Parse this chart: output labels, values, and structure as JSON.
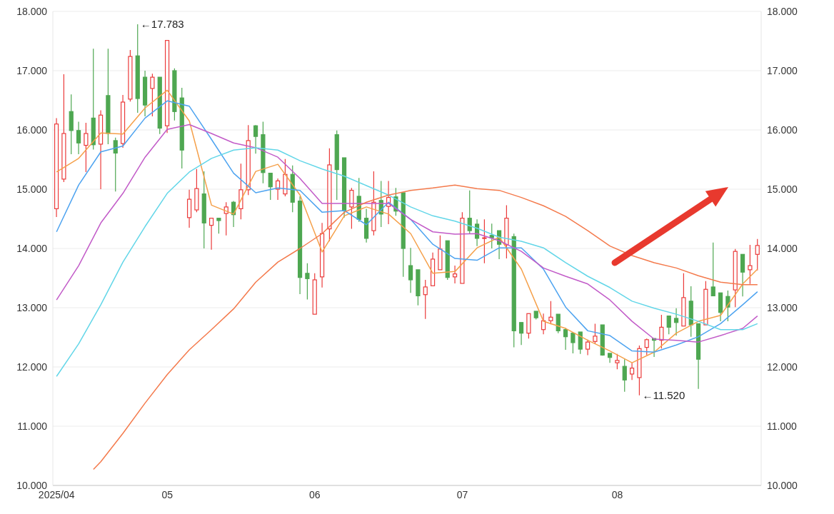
{
  "chart_data": {
    "type": "candlestick",
    "categories": [
      "2025/04",
      null,
      null,
      null,
      null,
      null,
      null,
      null,
      null,
      null,
      null,
      null,
      null,
      null,
      null,
      "05",
      null,
      null,
      null,
      null,
      null,
      null,
      null,
      null,
      null,
      null,
      null,
      null,
      null,
      null,
      null,
      null,
      null,
      null,
      null,
      "06",
      null,
      null,
      null,
      null,
      null,
      null,
      null,
      null,
      null,
      null,
      null,
      null,
      null,
      null,
      null,
      null,
      null,
      null,
      null,
      "07",
      null,
      null,
      null,
      null,
      null,
      null,
      null,
      null,
      null,
      null,
      null,
      null,
      null,
      null,
      null,
      null,
      null,
      null,
      null,
      null,
      "08",
      null,
      null,
      null,
      null,
      null,
      null,
      null,
      null,
      null,
      null,
      null,
      null,
      null,
      null,
      null,
      null,
      null,
      null,
      null
    ],
    "ohlc": [
      [
        14.67,
        16.2,
        14.53,
        16.1
      ],
      [
        15.17,
        16.94,
        15.12,
        15.94
      ],
      [
        16.31,
        16.6,
        15.59,
        15.99
      ],
      [
        15.99,
        16.14,
        15.59,
        15.78
      ],
      [
        15.74,
        16.12,
        15.29,
        15.94
      ],
      [
        16.2,
        17.37,
        15.67,
        15.75
      ],
      [
        15.76,
        16.33,
        15.0,
        16.25
      ],
      [
        16.58,
        17.37,
        15.76,
        15.94
      ],
      [
        15.82,
        15.87,
        14.96,
        15.61
      ],
      [
        15.77,
        16.59,
        15.7,
        16.47
      ],
      [
        16.52,
        17.35,
        16.48,
        17.24
      ],
      [
        17.25,
        17.783,
        16.29,
        16.53
      ],
      [
        16.89,
        17.0,
        16.23,
        16.42
      ],
      [
        16.7,
        16.95,
        16.23,
        16.89
      ],
      [
        16.89,
        16.89,
        15.93,
        16.03
      ],
      [
        16.07,
        17.51,
        15.95,
        17.51
      ],
      [
        17.0,
        17.04,
        16.16,
        16.31
      ],
      [
        16.54,
        16.71,
        15.35,
        15.66
      ],
      [
        14.52,
        14.99,
        14.35,
        14.83
      ],
      [
        14.65,
        15.34,
        14.61,
        15.01
      ],
      [
        14.92,
        15.3,
        14.0,
        14.43
      ],
      [
        14.39,
        14.51,
        13.98,
        14.51
      ],
      [
        14.51,
        14.51,
        14.25,
        14.47
      ],
      [
        14.59,
        14.78,
        14.22,
        14.7
      ],
      [
        14.78,
        14.8,
        14.36,
        14.57
      ],
      [
        14.67,
        15.43,
        14.49,
        14.99
      ],
      [
        14.99,
        16.08,
        14.9,
        15.82
      ],
      [
        16.07,
        16.08,
        15.6,
        15.89
      ],
      [
        15.92,
        16.14,
        15.1,
        15.28
      ],
      [
        15.27,
        15.27,
        14.82,
        15.04
      ],
      [
        15.0,
        15.18,
        14.82,
        15.14
      ],
      [
        14.92,
        15.51,
        14.88,
        15.25
      ],
      [
        15.25,
        15.4,
        14.61,
        14.78
      ],
      [
        14.8,
        14.88,
        13.23,
        13.51
      ],
      [
        13.58,
        13.75,
        13.14,
        13.49
      ],
      [
        12.89,
        13.58,
        12.89,
        13.47
      ],
      [
        13.52,
        14.43,
        13.34,
        14.25
      ],
      [
        14.33,
        15.69,
        14.12,
        15.41
      ],
      [
        15.92,
        15.99,
        14.82,
        15.33
      ],
      [
        15.53,
        15.53,
        14.52,
        14.64
      ],
      [
        14.7,
        15.02,
        14.33,
        14.98
      ],
      [
        14.88,
        15.19,
        14.45,
        14.49
      ],
      [
        14.51,
        14.67,
        14.1,
        14.17
      ],
      [
        14.3,
        15.3,
        14.22,
        14.78
      ],
      [
        14.81,
        15.14,
        14.36,
        14.58
      ],
      [
        14.71,
        15.14,
        14.41,
        14.86
      ],
      [
        14.87,
        15.02,
        14.55,
        14.63
      ],
      [
        14.94,
        14.94,
        13.52,
        14.0
      ],
      [
        13.71,
        14.01,
        13.25,
        13.47
      ],
      [
        13.64,
        13.64,
        13.04,
        13.2
      ],
      [
        13.22,
        13.47,
        12.81,
        13.35
      ],
      [
        13.37,
        13.93,
        13.37,
        13.82
      ],
      [
        13.64,
        14.22,
        13.64,
        13.99
      ],
      [
        14.13,
        14.13,
        13.47,
        13.51
      ],
      [
        13.52,
        13.71,
        13.41,
        13.57
      ],
      [
        13.41,
        14.61,
        13.41,
        14.51
      ],
      [
        14.51,
        14.98,
        14.25,
        14.3
      ],
      [
        14.41,
        14.49,
        14.04,
        14.17
      ],
      [
        14.17,
        14.49,
        13.75,
        14.18
      ],
      [
        14.22,
        14.42,
        14.0,
        14.18
      ],
      [
        14.3,
        14.3,
        13.82,
        14.07
      ],
      [
        14.06,
        14.73,
        13.83,
        14.51
      ],
      [
        14.2,
        14.25,
        12.33,
        12.61
      ],
      [
        12.75,
        12.75,
        12.37,
        12.57
      ],
      [
        12.57,
        12.9,
        12.48,
        12.9
      ],
      [
        12.94,
        12.94,
        12.8,
        12.83
      ],
      [
        12.63,
        12.9,
        12.55,
        12.78
      ],
      [
        12.78,
        13.11,
        12.72,
        12.84
      ],
      [
        12.89,
        12.89,
        12.57,
        12.61
      ],
      [
        12.63,
        12.66,
        12.29,
        12.51
      ],
      [
        12.57,
        12.57,
        12.23,
        12.41
      ],
      [
        12.59,
        12.59,
        12.22,
        12.3
      ],
      [
        12.3,
        12.46,
        12.2,
        12.42
      ],
      [
        12.43,
        12.73,
        12.39,
        12.52
      ],
      [
        12.71,
        12.71,
        12.19,
        12.2
      ],
      [
        12.23,
        12.23,
        12.07,
        12.16
      ],
      [
        12.07,
        12.22,
        11.96,
        12.11
      ],
      [
        12.01,
        12.13,
        11.58,
        11.78
      ],
      [
        11.88,
        12.07,
        11.78,
        11.98
      ],
      [
        11.82,
        12.36,
        11.52,
        12.31
      ],
      [
        12.33,
        12.48,
        12.2,
        12.46
      ],
      [
        12.48,
        12.48,
        12.17,
        12.45
      ],
      [
        12.45,
        12.88,
        12.31,
        12.67
      ],
      [
        12.86,
        12.86,
        12.55,
        12.67
      ],
      [
        12.82,
        12.99,
        12.53,
        12.75
      ],
      [
        12.69,
        13.58,
        12.69,
        13.17
      ],
      [
        13.11,
        13.36,
        12.51,
        12.71
      ],
      [
        12.73,
        12.73,
        11.63,
        12.13
      ],
      [
        12.71,
        13.45,
        12.71,
        13.31
      ],
      [
        13.35,
        14.1,
        13.2,
        13.2
      ],
      [
        13.25,
        13.25,
        12.77,
        12.92
      ],
      [
        13.19,
        13.29,
        12.77,
        13.01
      ],
      [
        13.3,
        13.99,
        13.01,
        13.95
      ],
      [
        13.9,
        13.9,
        13.19,
        13.6
      ],
      [
        13.64,
        14.06,
        13.4,
        13.71
      ],
      [
        13.9,
        14.16,
        13.63,
        14.05
      ]
    ],
    "colors": [
      "#eb3b3b",
      "#eb3b3b",
      "#4ea751",
      "#4ea751",
      "#eb3b3b",
      "#4ea751",
      "#eb3b3b",
      "#4ea751",
      "#4ea751",
      "#eb3b3b",
      "#eb3b3b",
      "#4ea751",
      "#4ea751",
      "#eb3b3b",
      "#4ea751",
      "#eb3b3b",
      "#4ea751",
      "#4ea751",
      "#eb3b3b",
      "#eb3b3b",
      "#4ea751",
      "#eb3b3b",
      "#4ea751",
      "#eb3b3b",
      "#4ea751",
      "#eb3b3b",
      "#eb3b3b",
      "#4ea751",
      "#4ea751",
      "#4ea751",
      "#eb3b3b",
      "#eb3b3b",
      "#4ea751",
      "#4ea751",
      "#4ea751",
      "#eb3b3b",
      "#eb3b3b",
      "#eb3b3b",
      "#4ea751",
      "#4ea751",
      "#eb3b3b",
      "#4ea751",
      "#4ea751",
      "#eb3b3b",
      "#4ea751",
      "#eb3b3b",
      "#4ea751",
      "#4ea751",
      "#4ea751",
      "#4ea751",
      "#eb3b3b",
      "#eb3b3b",
      "#eb3b3b",
      "#4ea751",
      "#eb3b3b",
      "#eb3b3b",
      "#4ea751",
      "#4ea751",
      "#eb3b3b",
      "#4ea751",
      "#4ea751",
      "#eb3b3b",
      "#4ea751",
      "#4ea751",
      "#eb3b3b",
      "#4ea751",
      "#eb3b3b",
      "#eb3b3b",
      "#4ea751",
      "#4ea751",
      "#4ea751",
      "#4ea751",
      "#eb3b3b",
      "#eb3b3b",
      "#4ea751",
      "#4ea751",
      "#eb3b3b",
      "#4ea751",
      "#eb3b3b",
      "#eb3b3b",
      "#eb3b3b",
      "#4ea751",
      "#eb3b3b",
      "#4ea751",
      "#4ea751",
      "#eb3b3b",
      "#4ea751",
      "#4ea751",
      "#eb3b3b",
      "#4ea751",
      "#4ea751",
      "#4ea751",
      "#eb3b3b",
      "#4ea751",
      "#eb3b3b",
      "#eb3b3b"
    ],
    "series": [
      {
        "type": "line",
        "color": "#f5a04a",
        "values": [
          15.29,
          null,
          null,
          15.52,
          null,
          null,
          15.95,
          null,
          null,
          15.93,
          null,
          null,
          16.37,
          null,
          null,
          16.67,
          null,
          null,
          16.15,
          null,
          null,
          14.73,
          null,
          null,
          14.58,
          null,
          null,
          15.3,
          null,
          null,
          15.42,
          null,
          null,
          14.9,
          null,
          null,
          13.94,
          null,
          null,
          14.55,
          null,
          null,
          14.7,
          null,
          null,
          14.58,
          null,
          null,
          14.25,
          null,
          null,
          13.58,
          null,
          null,
          13.61,
          null,
          null,
          14.01,
          null,
          null,
          14.19,
          null,
          null,
          13.65,
          null,
          null,
          12.77,
          null,
          null,
          12.65,
          null,
          null,
          12.45,
          null,
          null,
          12.27,
          null,
          null,
          12.07,
          null,
          null,
          12.25,
          null,
          null,
          12.57,
          null,
          null,
          12.77,
          null,
          null,
          12.87,
          null,
          null,
          13.4,
          null,
          13.65
        ]
      },
      {
        "type": "line",
        "color": "#4da3f0",
        "values": [
          14.28,
          null,
          null,
          15.07,
          null,
          null,
          15.63,
          null,
          null,
          15.73,
          null,
          null,
          16.2,
          null,
          null,
          16.49,
          null,
          null,
          16.4,
          null,
          null,
          15.84,
          null,
          null,
          15.27,
          null,
          null,
          14.94,
          null,
          null,
          15.02,
          null,
          null,
          14.98,
          null,
          null,
          14.61,
          null,
          null,
          14.64,
          null,
          null,
          14.4,
          null,
          null,
          14.78,
          null,
          null,
          14.49,
          null,
          null,
          14.07,
          null,
          null,
          13.83,
          null,
          null,
          13.8,
          null,
          null,
          14.01,
          null,
          null,
          14.01,
          null,
          null,
          13.65,
          null,
          null,
          13.01,
          null,
          null,
          12.61,
          null,
          null,
          12.53,
          null,
          null,
          12.27,
          null,
          null,
          12.25,
          null,
          null,
          12.37,
          null,
          null,
          12.51,
          null,
          null,
          12.73,
          null,
          null,
          13.05,
          null,
          13.27
        ]
      },
      {
        "type": "line",
        "color": "#c25bc8",
        "values": [
          13.13,
          null,
          null,
          13.71,
          null,
          null,
          14.43,
          null,
          null,
          14.93,
          null,
          null,
          15.54,
          null,
          null,
          16.01,
          null,
          null,
          16.09,
          null,
          null,
          15.94,
          null,
          null,
          15.78,
          null,
          null,
          15.7,
          null,
          null,
          15.54,
          null,
          null,
          15.18,
          null,
          null,
          14.76,
          null,
          null,
          14.76,
          null,
          null,
          14.76,
          null,
          null,
          14.76,
          null,
          null,
          14.49,
          null,
          null,
          14.28,
          null,
          null,
          14.24,
          null,
          null,
          14.25,
          null,
          null,
          14.13,
          null,
          null,
          13.95,
          null,
          null,
          13.67,
          null,
          null,
          13.53,
          null,
          null,
          13.4,
          null,
          null,
          13.13,
          null,
          null,
          12.77,
          null,
          null,
          12.47,
          null,
          null,
          12.45,
          null,
          null,
          12.42,
          null,
          null,
          12.53,
          null,
          null,
          12.65,
          null,
          12.86
        ]
      },
      {
        "type": "line",
        "color": "#62d6e8",
        "values": [
          11.84,
          null,
          null,
          12.39,
          null,
          null,
          13.05,
          null,
          null,
          13.77,
          null,
          null,
          14.37,
          null,
          null,
          14.93,
          null,
          null,
          15.29,
          null,
          null,
          15.52,
          null,
          null,
          15.66,
          null,
          null,
          15.7,
          null,
          null,
          15.66,
          null,
          null,
          15.48,
          null,
          null,
          15.34,
          null,
          null,
          15.22,
          null,
          null,
          15.06,
          null,
          null,
          14.9,
          null,
          null,
          14.7,
          null,
          null,
          14.55,
          null,
          null,
          14.46,
          null,
          null,
          14.34,
          null,
          null,
          14.19,
          null,
          null,
          14.12,
          null,
          null,
          14.01,
          null,
          null,
          13.76,
          null,
          null,
          13.53,
          null,
          null,
          13.34,
          null,
          null,
          13.11,
          null,
          null,
          12.99,
          null,
          null,
          12.89,
          null,
          null,
          12.77,
          null,
          null,
          12.63,
          null,
          null,
          12.63,
          null,
          12.73
        ]
      },
      {
        "type": "line",
        "color": "#f47a4c",
        "values": [
          null,
          null,
          null,
          null,
          null,
          10.27,
          10.4,
          null,
          null,
          10.88,
          null,
          null,
          11.39,
          null,
          null,
          11.87,
          null,
          null,
          12.29,
          null,
          null,
          12.63,
          null,
          null,
          12.98,
          null,
          null,
          13.43,
          null,
          null,
          13.77,
          null,
          null,
          14.0,
          null,
          null,
          14.25,
          null,
          null,
          14.61,
          null,
          null,
          14.78,
          null,
          null,
          14.9,
          null,
          null,
          14.98,
          null,
          null,
          15.02,
          null,
          null,
          15.07,
          null,
          null,
          15.01,
          null,
          null,
          14.98,
          null,
          null,
          14.86,
          null,
          null,
          14.72,
          null,
          null,
          14.54,
          null,
          null,
          14.3,
          null,
          null,
          14.04,
          null,
          null,
          13.88,
          null,
          null,
          13.76,
          null,
          null,
          13.67,
          null,
          null,
          13.54,
          null,
          null,
          13.43,
          null,
          null,
          13.39,
          null,
          13.39
        ]
      }
    ],
    "ylim": [
      10,
      18
    ],
    "yticks": [
      {
        "value": 10,
        "label": "10.000"
      },
      {
        "value": 11,
        "label": "11.000"
      },
      {
        "value": 12,
        "label": "12.000"
      },
      {
        "value": 13,
        "label": "13.000"
      },
      {
        "value": 14,
        "label": "14.000"
      },
      {
        "value": 15,
        "label": "15.000"
      },
      {
        "value": 16,
        "label": "16.000"
      },
      {
        "value": 17,
        "label": "17.000"
      },
      {
        "value": 18,
        "label": "18.000"
      }
    ],
    "y2lim": [
      10,
      18
    ],
    "y2ticks": [
      {
        "value": 10,
        "label": "10.000"
      },
      {
        "value": 11,
        "label": "11.000"
      },
      {
        "value": 12,
        "label": "12.000"
      },
      {
        "value": 13,
        "label": "13.000"
      },
      {
        "value": 14,
        "label": "14.000"
      },
      {
        "value": 15,
        "label": "15.000"
      },
      {
        "value": 16,
        "label": "16.000"
      },
      {
        "value": 17,
        "label": "17.000"
      },
      {
        "value": 18,
        "label": "18.000"
      }
    ],
    "grid": "y",
    "annotations": [
      "←17.783",
      "←11.520"
    ]
  }
}
